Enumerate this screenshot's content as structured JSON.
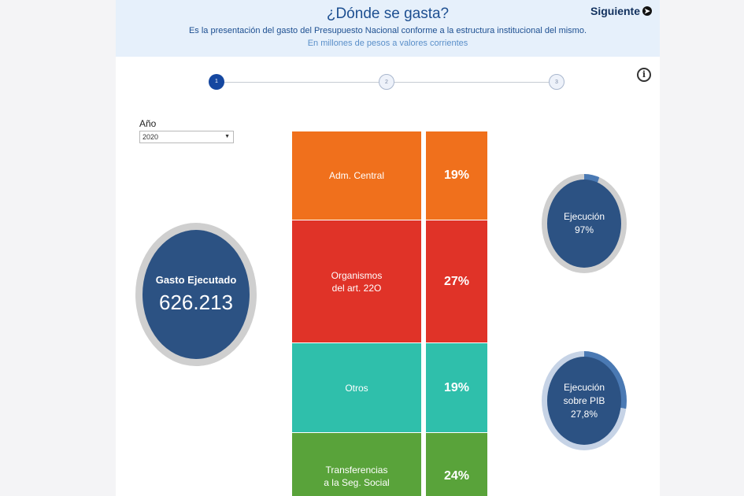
{
  "header": {
    "title": "¿Dónde se gasta?",
    "subtitle": "Es la presentación del gasto del Presupuesto Nacional conforme a la estructura institucional del mismo.",
    "units": "En millones de pesos a valores corrientes",
    "next_label": "Siguiente",
    "next_icon": "arrow-right-circle-icon"
  },
  "steps": [
    "1",
    "2",
    "3"
  ],
  "active_step": 1,
  "info_icon": "info-icon",
  "filter": {
    "label": "Año",
    "selected": "2020"
  },
  "total": {
    "label": "Gasto Ejecutado",
    "value": "626.213"
  },
  "execution": {
    "label": "Ejecución",
    "value": "97%",
    "fraction": 0.97
  },
  "gdp": {
    "label_line1": "Ejecución",
    "label_line2": "sobre PIB",
    "value": "27,8%",
    "fraction": 0.278
  },
  "breakdown": [
    {
      "name": "Adm. Central",
      "pct": "19%",
      "color": "#f0701c"
    },
    {
      "name": "Organismos\ndel art. 22O",
      "pct": "27%",
      "color": "#e03328"
    },
    {
      "name": "Otros",
      "pct": "19%",
      "color": "#2fbfab"
    },
    {
      "name": "Transferencias\na la Seg. Social",
      "pct": "24%",
      "color": "#59a33a"
    }
  ]
}
